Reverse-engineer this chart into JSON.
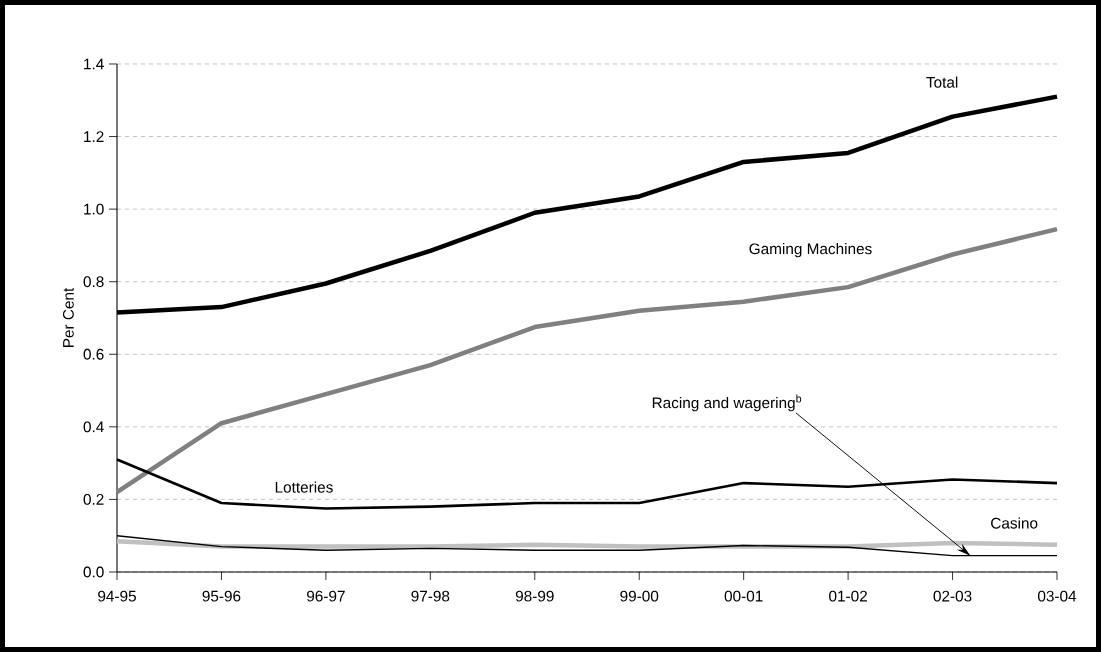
{
  "chart_data": {
    "type": "line",
    "ylabel": "Per Cent",
    "categories": [
      "94-95",
      "95-96",
      "96-97",
      "97-98",
      "98-99",
      "99-00",
      "00-01",
      "01-02",
      "02-03",
      "03-04"
    ],
    "series": [
      {
        "name": "Total",
        "color": "#000000",
        "values": [
          0.715,
          0.73,
          0.795,
          0.885,
          0.99,
          1.035,
          1.13,
          1.155,
          1.255,
          1.31
        ]
      },
      {
        "name": "Gaming Machines",
        "color": "#808080",
        "values": [
          0.22,
          0.41,
          0.49,
          0.57,
          0.675,
          0.72,
          0.745,
          0.785,
          0.875,
          0.945
        ]
      },
      {
        "name": "Lotteries",
        "color": "#000000",
        "values": [
          0.31,
          0.19,
          0.175,
          0.18,
          0.19,
          0.19,
          0.245,
          0.235,
          0.255,
          0.245
        ]
      },
      {
        "name": "Racing and wagering$^{b}$",
        "color": "#000000",
        "values": [
          0.1,
          0.07,
          0.06,
          0.065,
          0.06,
          0.06,
          0.073,
          0.068,
          0.045,
          0.045
        ]
      },
      {
        "name": "Casino",
        "color": "#c0c0c0",
        "values": [
          0.085,
          0.07,
          0.07,
          0.07,
          0.075,
          0.07,
          0.07,
          0.07,
          0.08,
          0.075
        ]
      }
    ],
    "ylim": [
      0,
      1.4
    ],
    "yticks": [
      {
        "value": 0,
        "label": "0.0"
      },
      {
        "value": 0.2,
        "label": "0.2"
      },
      {
        "value": 0.4,
        "label": "0.4"
      },
      {
        "value": 0.6,
        "label": "0.6"
      },
      {
        "value": 0.8,
        "label": "0.8"
      },
      {
        "value": 1.0,
        "label": "1.0"
      },
      {
        "value": 1.2,
        "label": "1.2"
      },
      {
        "value": 1.4,
        "label": "1.4"
      }
    ],
    "grid": "y",
    "marker": "none",
    "line_style": "solid"
  }
}
